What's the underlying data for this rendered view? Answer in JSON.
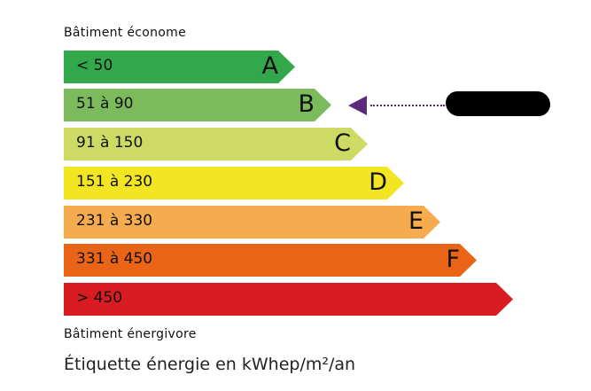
{
  "top_caption": "Bâtiment économe",
  "bottom_caption": "Bâtiment énergivore",
  "footer": "Étiquette énergie en kWhep/m²/an",
  "classes": [
    {
      "letter": "A",
      "range": "< 50",
      "color": "#33a84a"
    },
    {
      "letter": "B",
      "range": "51 à 90",
      "color": "#7cbb5c"
    },
    {
      "letter": "C",
      "range": "91 à 150",
      "color": "#cddb64"
    },
    {
      "letter": "D",
      "range": "151 à 230",
      "color": "#f2e521"
    },
    {
      "letter": "E",
      "range": "231 à 330",
      "color": "#f6ab4f"
    },
    {
      "letter": "F",
      "range": "331 à 450",
      "color": "#ea6418"
    },
    {
      "letter": "",
      "range": "> 450",
      "color": "#d91c21"
    }
  ],
  "indicator": {
    "class": "B",
    "color": "#5b2a7b",
    "label_redacted": true
  }
}
